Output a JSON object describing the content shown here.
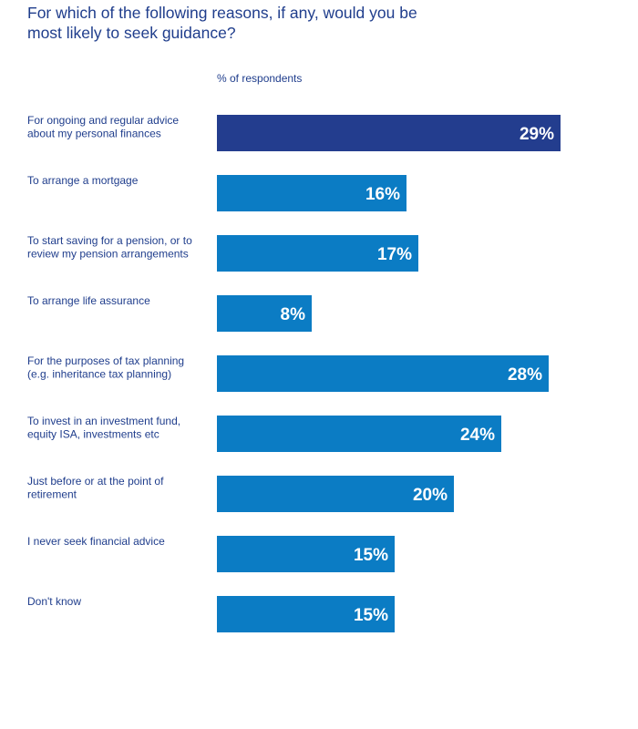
{
  "chart_data": {
    "type": "bar",
    "orientation": "horizontal",
    "title": "For which of the following reasons, if any, would you be most likely to seek guidance?",
    "unit_label": "% of respondents",
    "xlim": [
      0,
      30
    ],
    "grid": false,
    "legend": "none",
    "categories": [
      [
        "For ongoing and regular advice",
        "about my personal finances"
      ],
      [
        "To arrange a mortgage"
      ],
      [
        "To start saving for a pension, or to",
        "review my pension arrangements"
      ],
      [
        "To arrange life assurance"
      ],
      [
        "For the purposes of tax planning",
        "(e.g. inheritance tax planning)"
      ],
      [
        "To invest in an investment fund,",
        "equity ISA, investments etc"
      ],
      [
        "Just before or at the point of",
        "retirement"
      ],
      [
        "I never seek financial advice"
      ],
      [
        "Don't know"
      ]
    ],
    "values": [
      29,
      16,
      17,
      8,
      28,
      24,
      20,
      15,
      15
    ],
    "value_labels": [
      "29%",
      "16%",
      "17%",
      "8%",
      "28%",
      "24%",
      "20%",
      "15%",
      "15%"
    ],
    "highlight_index": 0,
    "colors": {
      "highlight": "#233d8e",
      "bar": "#0b7cc4",
      "text": "#1f3d8c",
      "value_text": "#ffffff"
    }
  }
}
